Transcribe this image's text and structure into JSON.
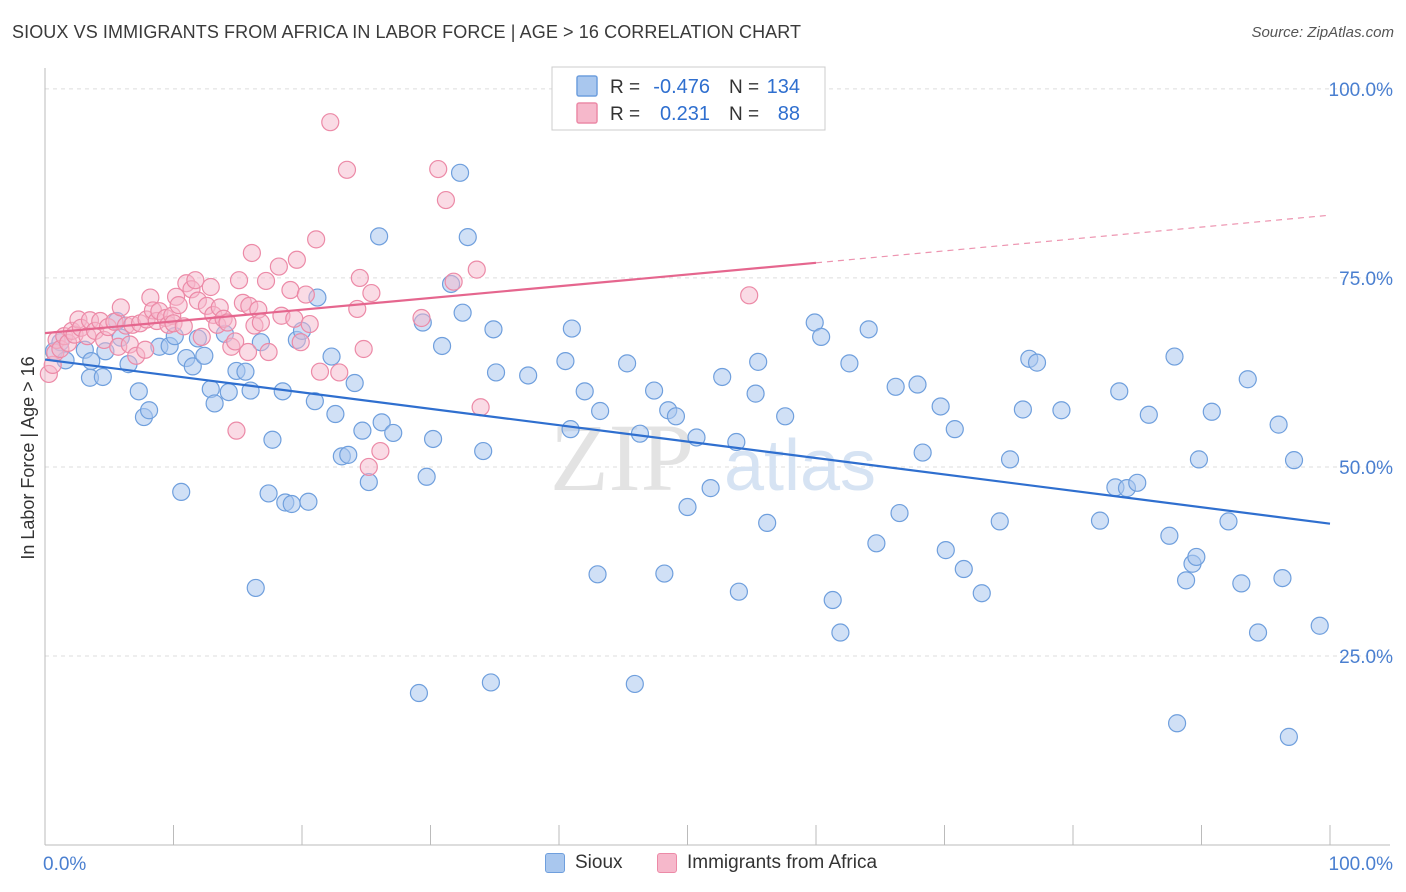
{
  "header": {
    "title": "SIOUX VS IMMIGRANTS FROM AFRICA IN LABOR FORCE | AGE > 16 CORRELATION CHART",
    "source": "Source: ZipAtlas.com"
  },
  "watermark": {
    "zip": "ZIP",
    "atlas": "atlas"
  },
  "legend_box": {
    "rows": [
      {
        "r_label": "R =",
        "r_value": "-0.476",
        "n_label": "N =",
        "n_value": "134"
      },
      {
        "r_label": "R =",
        "r_value": "0.231",
        "n_label": "N =",
        "n_value": "88"
      }
    ]
  },
  "legend_bottom": {
    "items": [
      "Sioux",
      "Immigrants from Africa"
    ]
  },
  "chart_data": {
    "type": "scatter",
    "xlabel": "",
    "ylabel": "In Labor Force | Age > 16",
    "xlim": [
      0,
      100
    ],
    "ylim": [
      0,
      102.5
    ],
    "x_tick_labels": [
      "0.0%",
      "100.0%"
    ],
    "y_ticks": [
      25,
      50,
      75,
      100
    ],
    "y_tick_labels": [
      "25.0%",
      "50.0%",
      "75.0%",
      "100.0%"
    ],
    "grid": true,
    "colors": {
      "sioux_fill": "#a9c7ee",
      "sioux_stroke": "#6f9fdd",
      "sioux_line": "#2f6fcf",
      "africa_fill": "#f6b8cb",
      "africa_stroke": "#ec8aa7",
      "africa_line": "#e5668e",
      "r_value": "#2f6fcf",
      "axis_label": "#4a7fd0"
    },
    "series": [
      {
        "name": "Sioux",
        "trend": {
          "x1": 0,
          "y1": 64.2,
          "x2": 100,
          "y2": 42.5
        },
        "points": [
          [
            0.7,
            65.3
          ],
          [
            1.6,
            64.1
          ],
          [
            1.2,
            66.5
          ],
          [
            3.1,
            65.5
          ],
          [
            3.6,
            64.0
          ],
          [
            3.5,
            61.8
          ],
          [
            4.5,
            61.9
          ],
          [
            4.7,
            65.3
          ],
          [
            5.9,
            67.1
          ],
          [
            5.6,
            69.3
          ],
          [
            6.5,
            63.6
          ],
          [
            7.3,
            60.0
          ],
          [
            7.7,
            56.6
          ],
          [
            8.1,
            57.5
          ],
          [
            8.9,
            65.9
          ],
          [
            9.7,
            66.0
          ],
          [
            10.1,
            67.3
          ],
          [
            10.6,
            46.7
          ],
          [
            11.0,
            64.4
          ],
          [
            11.5,
            63.3
          ],
          [
            11.9,
            67.0
          ],
          [
            12.4,
            64.7
          ],
          [
            12.9,
            60.3
          ],
          [
            13.2,
            58.4
          ],
          [
            14.0,
            67.6
          ],
          [
            14.3,
            59.9
          ],
          [
            14.9,
            62.7
          ],
          [
            15.6,
            62.6
          ],
          [
            16.0,
            60.1
          ],
          [
            16.4,
            34.0
          ],
          [
            16.8,
            66.5
          ],
          [
            17.4,
            46.5
          ],
          [
            17.7,
            53.6
          ],
          [
            18.5,
            60.0
          ],
          [
            18.7,
            45.3
          ],
          [
            19.2,
            45.1
          ],
          [
            19.6,
            66.8
          ],
          [
            20.0,
            68.0
          ],
          [
            20.5,
            45.4
          ],
          [
            21.2,
            72.4
          ],
          [
            21.0,
            58.7
          ],
          [
            22.3,
            64.6
          ],
          [
            22.6,
            57.0
          ],
          [
            23.1,
            51.4
          ],
          [
            23.6,
            51.6
          ],
          [
            24.1,
            61.1
          ],
          [
            24.7,
            54.8
          ],
          [
            25.2,
            48.0
          ],
          [
            26.0,
            80.5
          ],
          [
            26.2,
            55.9
          ],
          [
            27.1,
            54.5
          ],
          [
            29.1,
            20.1
          ],
          [
            29.4,
            69.1
          ],
          [
            29.7,
            48.7
          ],
          [
            30.2,
            53.7
          ],
          [
            30.9,
            66.0
          ],
          [
            31.6,
            74.2
          ],
          [
            32.5,
            70.4
          ],
          [
            32.3,
            88.9
          ],
          [
            32.9,
            80.4
          ],
          [
            34.1,
            52.1
          ],
          [
            34.9,
            68.2
          ],
          [
            35.1,
            62.5
          ],
          [
            34.7,
            21.5
          ],
          [
            37.6,
            62.1
          ],
          [
            40.5,
            64.0
          ],
          [
            40.9,
            55.0
          ],
          [
            41.0,
            68.3
          ],
          [
            42.0,
            60.0
          ],
          [
            43.2,
            57.4
          ],
          [
            43.0,
            35.8
          ],
          [
            45.3,
            63.7
          ],
          [
            45.9,
            21.3
          ],
          [
            46.3,
            54.4
          ],
          [
            47.4,
            60.1
          ],
          [
            48.2,
            35.9
          ],
          [
            48.5,
            57.5
          ],
          [
            49.1,
            56.7
          ],
          [
            50.0,
            44.7
          ],
          [
            50.7,
            53.9
          ],
          [
            51.8,
            47.2
          ],
          [
            52.7,
            61.9
          ],
          [
            53.8,
            53.3
          ],
          [
            54.0,
            33.5
          ],
          [
            55.3,
            59.7
          ],
          [
            55.5,
            63.9
          ],
          [
            56.2,
            42.6
          ],
          [
            57.6,
            56.7
          ],
          [
            59.9,
            69.1
          ],
          [
            60.4,
            67.2
          ],
          [
            61.3,
            32.4
          ],
          [
            61.9,
            28.1
          ],
          [
            62.6,
            63.7
          ],
          [
            64.1,
            68.2
          ],
          [
            64.7,
            39.9
          ],
          [
            66.2,
            60.6
          ],
          [
            66.5,
            43.9
          ],
          [
            67.9,
            60.9
          ],
          [
            68.3,
            51.9
          ],
          [
            69.7,
            58.0
          ],
          [
            70.1,
            39.0
          ],
          [
            70.8,
            55.0
          ],
          [
            71.5,
            36.5
          ],
          [
            72.9,
            33.3
          ],
          [
            74.3,
            42.8
          ],
          [
            75.1,
            51.0
          ],
          [
            76.1,
            57.6
          ],
          [
            76.6,
            64.3
          ],
          [
            77.2,
            63.8
          ],
          [
            79.1,
            57.5
          ],
          [
            82.1,
            42.9
          ],
          [
            83.3,
            47.3
          ],
          [
            83.6,
            60.0
          ],
          [
            84.2,
            47.2
          ],
          [
            85.0,
            47.9
          ],
          [
            85.9,
            56.9
          ],
          [
            87.5,
            40.9
          ],
          [
            87.9,
            64.6
          ],
          [
            88.1,
            16.1
          ],
          [
            88.8,
            35.0
          ],
          [
            89.3,
            37.2
          ],
          [
            89.6,
            38.1
          ],
          [
            89.8,
            51.0
          ],
          [
            90.8,
            57.3
          ],
          [
            92.1,
            42.8
          ],
          [
            93.1,
            34.6
          ],
          [
            93.6,
            61.6
          ],
          [
            94.4,
            28.1
          ],
          [
            96.0,
            55.6
          ],
          [
            96.3,
            35.3
          ],
          [
            96.8,
            14.3
          ],
          [
            97.2,
            50.9
          ],
          [
            99.2,
            29.0
          ]
        ]
      },
      {
        "name": "Immigrants from Africa",
        "trend": {
          "x1": 0,
          "y1": 67.7,
          "x2": 60,
          "y2": 77.0,
          "x_end": 100,
          "y_end": 83.3
        },
        "points": [
          [
            0.3,
            62.3
          ],
          [
            0.6,
            63.5
          ],
          [
            0.8,
            65.1
          ],
          [
            0.9,
            66.8
          ],
          [
            1.2,
            65.6
          ],
          [
            1.5,
            67.3
          ],
          [
            1.8,
            66.4
          ],
          [
            2.1,
            68.0
          ],
          [
            2.3,
            67.5
          ],
          [
            2.6,
            69.5
          ],
          [
            2.8,
            68.4
          ],
          [
            3.3,
            67.3
          ],
          [
            3.5,
            69.4
          ],
          [
            3.9,
            68.0
          ],
          [
            4.3,
            69.3
          ],
          [
            4.6,
            66.8
          ],
          [
            4.9,
            68.5
          ],
          [
            5.4,
            69.2
          ],
          [
            5.7,
            65.9
          ],
          [
            5.9,
            71.1
          ],
          [
            6.3,
            68.7
          ],
          [
            6.6,
            66.2
          ],
          [
            6.8,
            68.8
          ],
          [
            7.1,
            64.7
          ],
          [
            7.4,
            69.0
          ],
          [
            7.8,
            65.5
          ],
          [
            7.9,
            69.5
          ],
          [
            8.2,
            72.4
          ],
          [
            8.4,
            70.7
          ],
          [
            8.7,
            69.3
          ],
          [
            8.9,
            70.6
          ],
          [
            9.4,
            69.7
          ],
          [
            9.6,
            68.8
          ],
          [
            9.9,
            70.0
          ],
          [
            10.0,
            69.0
          ],
          [
            10.2,
            72.5
          ],
          [
            10.4,
            71.4
          ],
          [
            10.8,
            68.6
          ],
          [
            11.0,
            74.3
          ],
          [
            11.4,
            73.5
          ],
          [
            11.7,
            74.7
          ],
          [
            11.9,
            72.0
          ],
          [
            12.2,
            67.2
          ],
          [
            12.6,
            71.3
          ],
          [
            12.9,
            73.8
          ],
          [
            13.1,
            70.1
          ],
          [
            13.4,
            68.8
          ],
          [
            13.6,
            71.1
          ],
          [
            13.9,
            69.6
          ],
          [
            14.2,
            69.1
          ],
          [
            14.5,
            65.9
          ],
          [
            14.8,
            66.6
          ],
          [
            14.9,
            54.8
          ],
          [
            15.1,
            74.7
          ],
          [
            15.4,
            71.7
          ],
          [
            15.8,
            65.2
          ],
          [
            15.9,
            71.3
          ],
          [
            16.1,
            78.3
          ],
          [
            16.3,
            68.7
          ],
          [
            16.6,
            70.8
          ],
          [
            16.8,
            69.1
          ],
          [
            17.2,
            74.6
          ],
          [
            17.4,
            65.2
          ],
          [
            18.2,
            76.5
          ],
          [
            18.4,
            70.0
          ],
          [
            19.1,
            73.4
          ],
          [
            19.4,
            69.6
          ],
          [
            19.6,
            77.4
          ],
          [
            19.9,
            66.5
          ],
          [
            20.3,
            72.8
          ],
          [
            20.6,
            68.9
          ],
          [
            21.1,
            80.1
          ],
          [
            21.4,
            62.6
          ],
          [
            22.2,
            95.6
          ],
          [
            22.9,
            62.5
          ],
          [
            23.5,
            89.3
          ],
          [
            24.3,
            70.9
          ],
          [
            24.5,
            75.0
          ],
          [
            24.8,
            65.6
          ],
          [
            25.2,
            50.0
          ],
          [
            25.4,
            73.0
          ],
          [
            26.1,
            52.1
          ],
          [
            29.3,
            69.7
          ],
          [
            30.6,
            89.4
          ],
          [
            31.2,
            85.3
          ],
          [
            31.8,
            74.5
          ],
          [
            33.6,
            76.1
          ],
          [
            33.9,
            57.9
          ],
          [
            54.8,
            72.7
          ]
        ]
      }
    ]
  }
}
